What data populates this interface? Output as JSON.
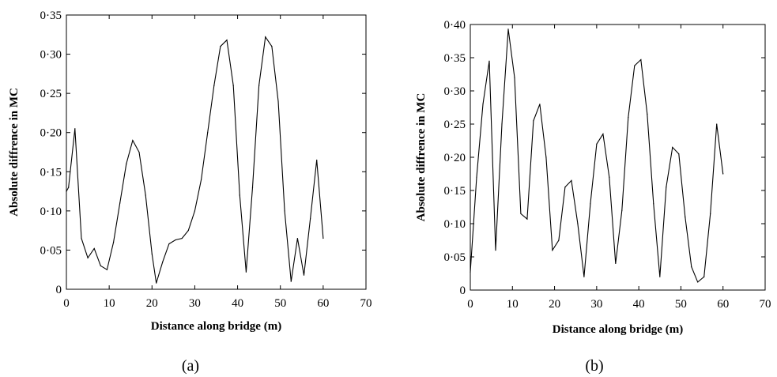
{
  "chart_data": [
    {
      "type": "line",
      "panel_label": "(a)",
      "xlabel": "Distance along bridge (m)",
      "ylabel": "Absolute diffrence in MC",
      "xlim": [
        0,
        70
      ],
      "ylim": [
        0,
        0.35
      ],
      "x_ticks": [
        0,
        10,
        20,
        30,
        40,
        50,
        60,
        70
      ],
      "x_tick_labels": [
        "0",
        "10",
        "20",
        "30",
        "40",
        "50",
        "60",
        "70"
      ],
      "y_ticks": [
        0,
        0.05,
        0.1,
        0.15,
        0.2,
        0.25,
        0.3,
        0.35
      ],
      "y_tick_labels": [
        "0",
        "0·05",
        "0·10",
        "0·15",
        "0·20",
        "0·25",
        "0·30",
        "0·35"
      ],
      "grid": false,
      "x": [
        0,
        0.5,
        2,
        3.5,
        5,
        6.5,
        8,
        9.5,
        11,
        12.5,
        14,
        15.5,
        17,
        18.5,
        20,
        21,
        22.5,
        24,
        25.5,
        27,
        28.5,
        30,
        31.5,
        33,
        34.5,
        36,
        37.5,
        39,
        40.5,
        42,
        43.5,
        45,
        46.5,
        48,
        49.5,
        51,
        52.5,
        54,
        55.5,
        57,
        58.5,
        60
      ],
      "y": [
        0.125,
        0.13,
        0.205,
        0.065,
        0.04,
        0.052,
        0.03,
        0.025,
        0.06,
        0.11,
        0.16,
        0.19,
        0.175,
        0.12,
        0.045,
        0.008,
        0.035,
        0.058,
        0.063,
        0.065,
        0.075,
        0.1,
        0.14,
        0.2,
        0.26,
        0.31,
        0.318,
        0.26,
        0.12,
        0.022,
        0.13,
        0.26,
        0.322,
        0.31,
        0.24,
        0.1,
        0.01,
        0.065,
        0.018,
        0.09,
        0.165,
        0.065
      ]
    },
    {
      "type": "line",
      "panel_label": "(b)",
      "xlabel": "Distance along bridge (m)",
      "ylabel": "Absolute diffrence in MC",
      "xlim": [
        0,
        70
      ],
      "ylim": [
        0,
        0.4
      ],
      "x_ticks": [
        0,
        10,
        20,
        30,
        40,
        50,
        60,
        70
      ],
      "x_tick_labels": [
        "0",
        "10",
        "20",
        "30",
        "40",
        "50",
        "60",
        "70"
      ],
      "y_ticks": [
        0,
        0.05,
        0.1,
        0.15,
        0.2,
        0.25,
        0.3,
        0.35,
        0.4
      ],
      "y_tick_labels": [
        "0",
        "0·05",
        "0·10",
        "0·15",
        "0·20",
        "0·25",
        "0·30",
        "0·35",
        "0·40"
      ],
      "grid": false,
      "x": [
        0,
        1.5,
        3,
        4.5,
        6,
        7.5,
        9,
        10.5,
        12,
        13.5,
        15,
        16.5,
        18,
        19.5,
        21,
        22.5,
        24,
        25.5,
        27,
        28.5,
        30,
        31.5,
        33,
        34.5,
        36,
        37.5,
        39,
        40.5,
        42,
        43.5,
        45,
        46.5,
        48,
        49.5,
        51,
        52.5,
        54,
        55.5,
        57,
        58.5,
        60
      ],
      "y": [
        0.027,
        0.17,
        0.28,
        0.345,
        0.06,
        0.25,
        0.393,
        0.32,
        0.115,
        0.107,
        0.255,
        0.28,
        0.2,
        0.06,
        0.075,
        0.155,
        0.165,
        0.1,
        0.02,
        0.13,
        0.22,
        0.235,
        0.17,
        0.04,
        0.12,
        0.26,
        0.338,
        0.347,
        0.265,
        0.13,
        0.02,
        0.155,
        0.215,
        0.205,
        0.11,
        0.035,
        0.012,
        0.02,
        0.115,
        0.25,
        0.175
      ]
    }
  ]
}
